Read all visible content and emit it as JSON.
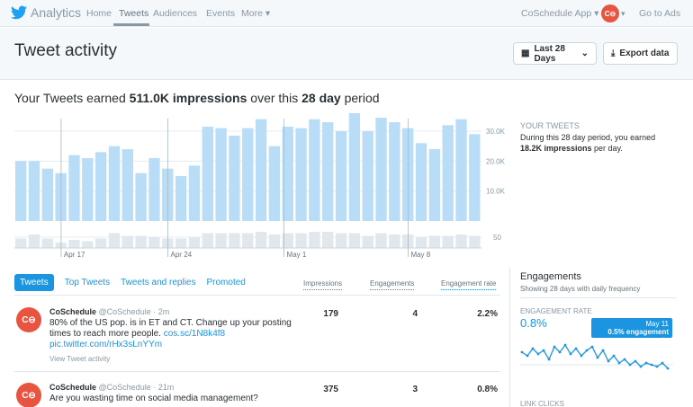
{
  "nav": {
    "brand": "Analytics",
    "items": [
      "Home",
      "Tweets",
      "Audiences",
      "Events",
      "More ▾"
    ],
    "app_menu": "CoSchedule App ▾",
    "go_to_ads": "Go to Ads",
    "avatar_text": "C⊖"
  },
  "header": {
    "title": "Tweet activity",
    "date_button": "Last 28 Days",
    "export_button": "Export data"
  },
  "summary": {
    "prefix": "Your Tweets earned ",
    "impressions": "511.0K impressions",
    "middle": " over this ",
    "period": "28 day",
    "suffix": " period"
  },
  "chart_data": {
    "type": "bar",
    "series": [
      {
        "name": "impressions",
        "values": [
          20,
          20,
          17.5,
          16,
          22,
          21,
          23,
          25,
          24,
          16,
          21,
          17.5,
          15,
          18.5,
          31.5,
          31,
          28.5,
          31,
          34,
          25,
          31.5,
          31,
          34,
          33,
          30,
          37,
          30,
          34.5,
          33,
          31,
          26,
          24,
          32,
          34,
          29
        ]
      },
      {
        "name": "engagements",
        "values": [
          35,
          50,
          35,
          20,
          30,
          25,
          35,
          55,
          45,
          45,
          40,
          35,
          35,
          40,
          55,
          55,
          55,
          55,
          60,
          50,
          55,
          55,
          60,
          60,
          55,
          55,
          45,
          55,
          50,
          50,
          40,
          45,
          45,
          50,
          45
        ]
      }
    ],
    "x_tick_labels": [
      "Apr 17",
      "Apr 24",
      "May 1",
      "May 8"
    ],
    "y_tick_labels": [
      "30.0K",
      "20.0K",
      "10.0K"
    ],
    "y2_tick_label": "50",
    "ylim": [
      0,
      30000
    ]
  },
  "side": {
    "heading": "YOUR TWEETS",
    "line1": "During this 28 day period, you earned",
    "bold": "18.2K impressions",
    "line2_suffix": " per day."
  },
  "tabs": [
    "Tweets",
    "Top Tweets",
    "Tweets and replies",
    "Promoted"
  ],
  "columns": [
    "Impressions",
    "Engagements",
    "Engagement rate"
  ],
  "tweets": [
    {
      "author": "CoSchedule",
      "handle": "@CoSchedule · 2m",
      "text": "80% of the US pop. is in ET and CT. Change up your posting times to reach more people. ",
      "link1": "cos.sc/1N8k4f8",
      "link2": "pic.twitter.com/rHx3sLnYYm",
      "view": "View Tweet activity",
      "impressions": "179",
      "engagements": "4",
      "rate": "2.2%"
    },
    {
      "author": "CoSchedule",
      "handle": "@CoSchedule · 21m",
      "text": "Are you wasting time on social media management?",
      "impressions": "375",
      "engagements": "3",
      "rate": "0.8%"
    }
  ],
  "engagements": {
    "title": "Engagements",
    "subtitle": "Showing 28 days with daily frequency",
    "rate_heading": "ENGAGEMENT RATE",
    "rate_value": "0.8%",
    "tooltip_date": "May 11",
    "tooltip_value": "0.5% engagement rate",
    "link_clicks_heading": "LINK CLICKS",
    "rate_series": [
      1.4,
      1.2,
      1.6,
      1.3,
      1.5,
      1.0,
      1.7,
      1.4,
      1.8,
      1.3,
      1.6,
      1.2,
      1.5,
      1.7,
      1.1,
      1.5,
      0.9,
      1.2,
      0.8,
      1.0,
      0.7,
      0.9,
      0.6,
      0.8,
      0.7,
      0.6,
      0.8,
      0.5
    ]
  },
  "colors": {
    "accent": "#1b95e0",
    "bar": "#b9dcf7",
    "bar_engagement": "#e1e8ed",
    "brand_avatar": "#e8543f"
  }
}
